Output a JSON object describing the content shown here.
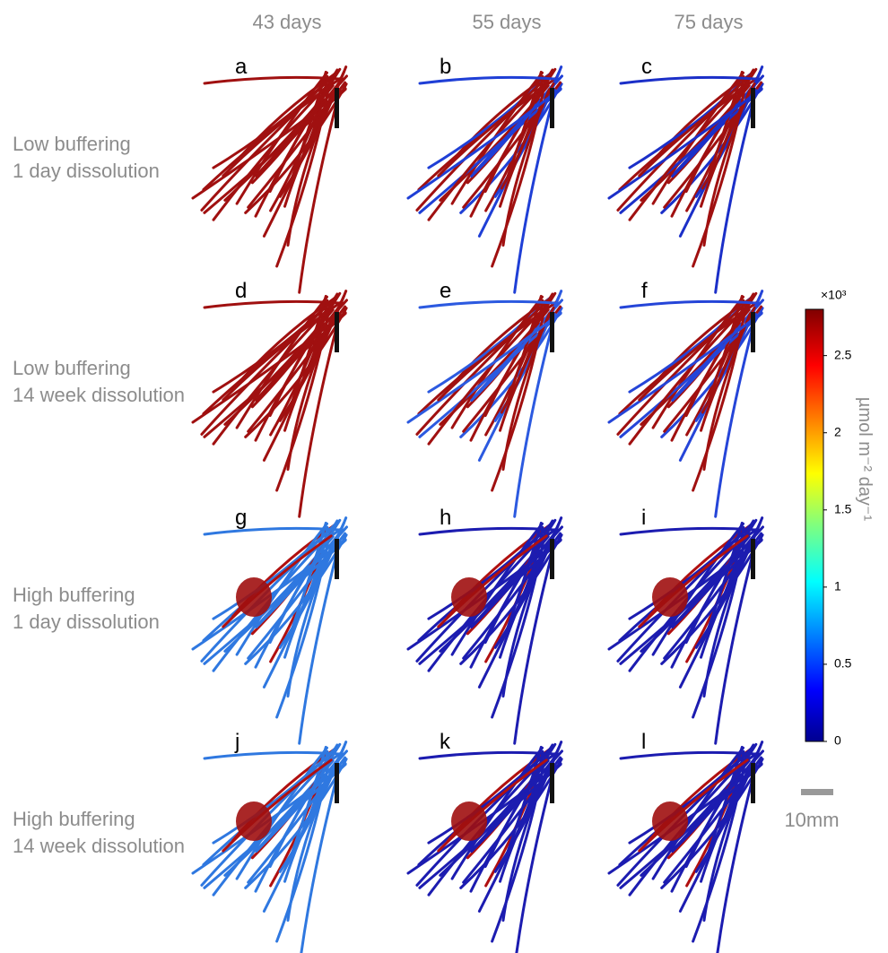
{
  "column_headers": [
    "43 days",
    "55 days",
    "75 days"
  ],
  "row_labels": [
    [
      "Low buffering",
      "1 day dissolution"
    ],
    [
      "Low buffering",
      "14 week dissolution"
    ],
    [
      "High buffering",
      "1 day dissolution"
    ],
    [
      "High buffering",
      "14 week dissolution"
    ]
  ],
  "panels": [
    "a",
    "b",
    "c",
    "d",
    "e",
    "f",
    "g",
    "h",
    "i",
    "j",
    "k",
    "l"
  ],
  "colorbar": {
    "multiplier": "×10³",
    "label": "µmol m⁻² day⁻¹",
    "lim": [
      0,
      2.8
    ],
    "ticks": [
      0,
      0.5,
      1,
      1.5,
      2,
      2.5
    ]
  },
  "scale_bar": {
    "label": "10mm"
  }
}
